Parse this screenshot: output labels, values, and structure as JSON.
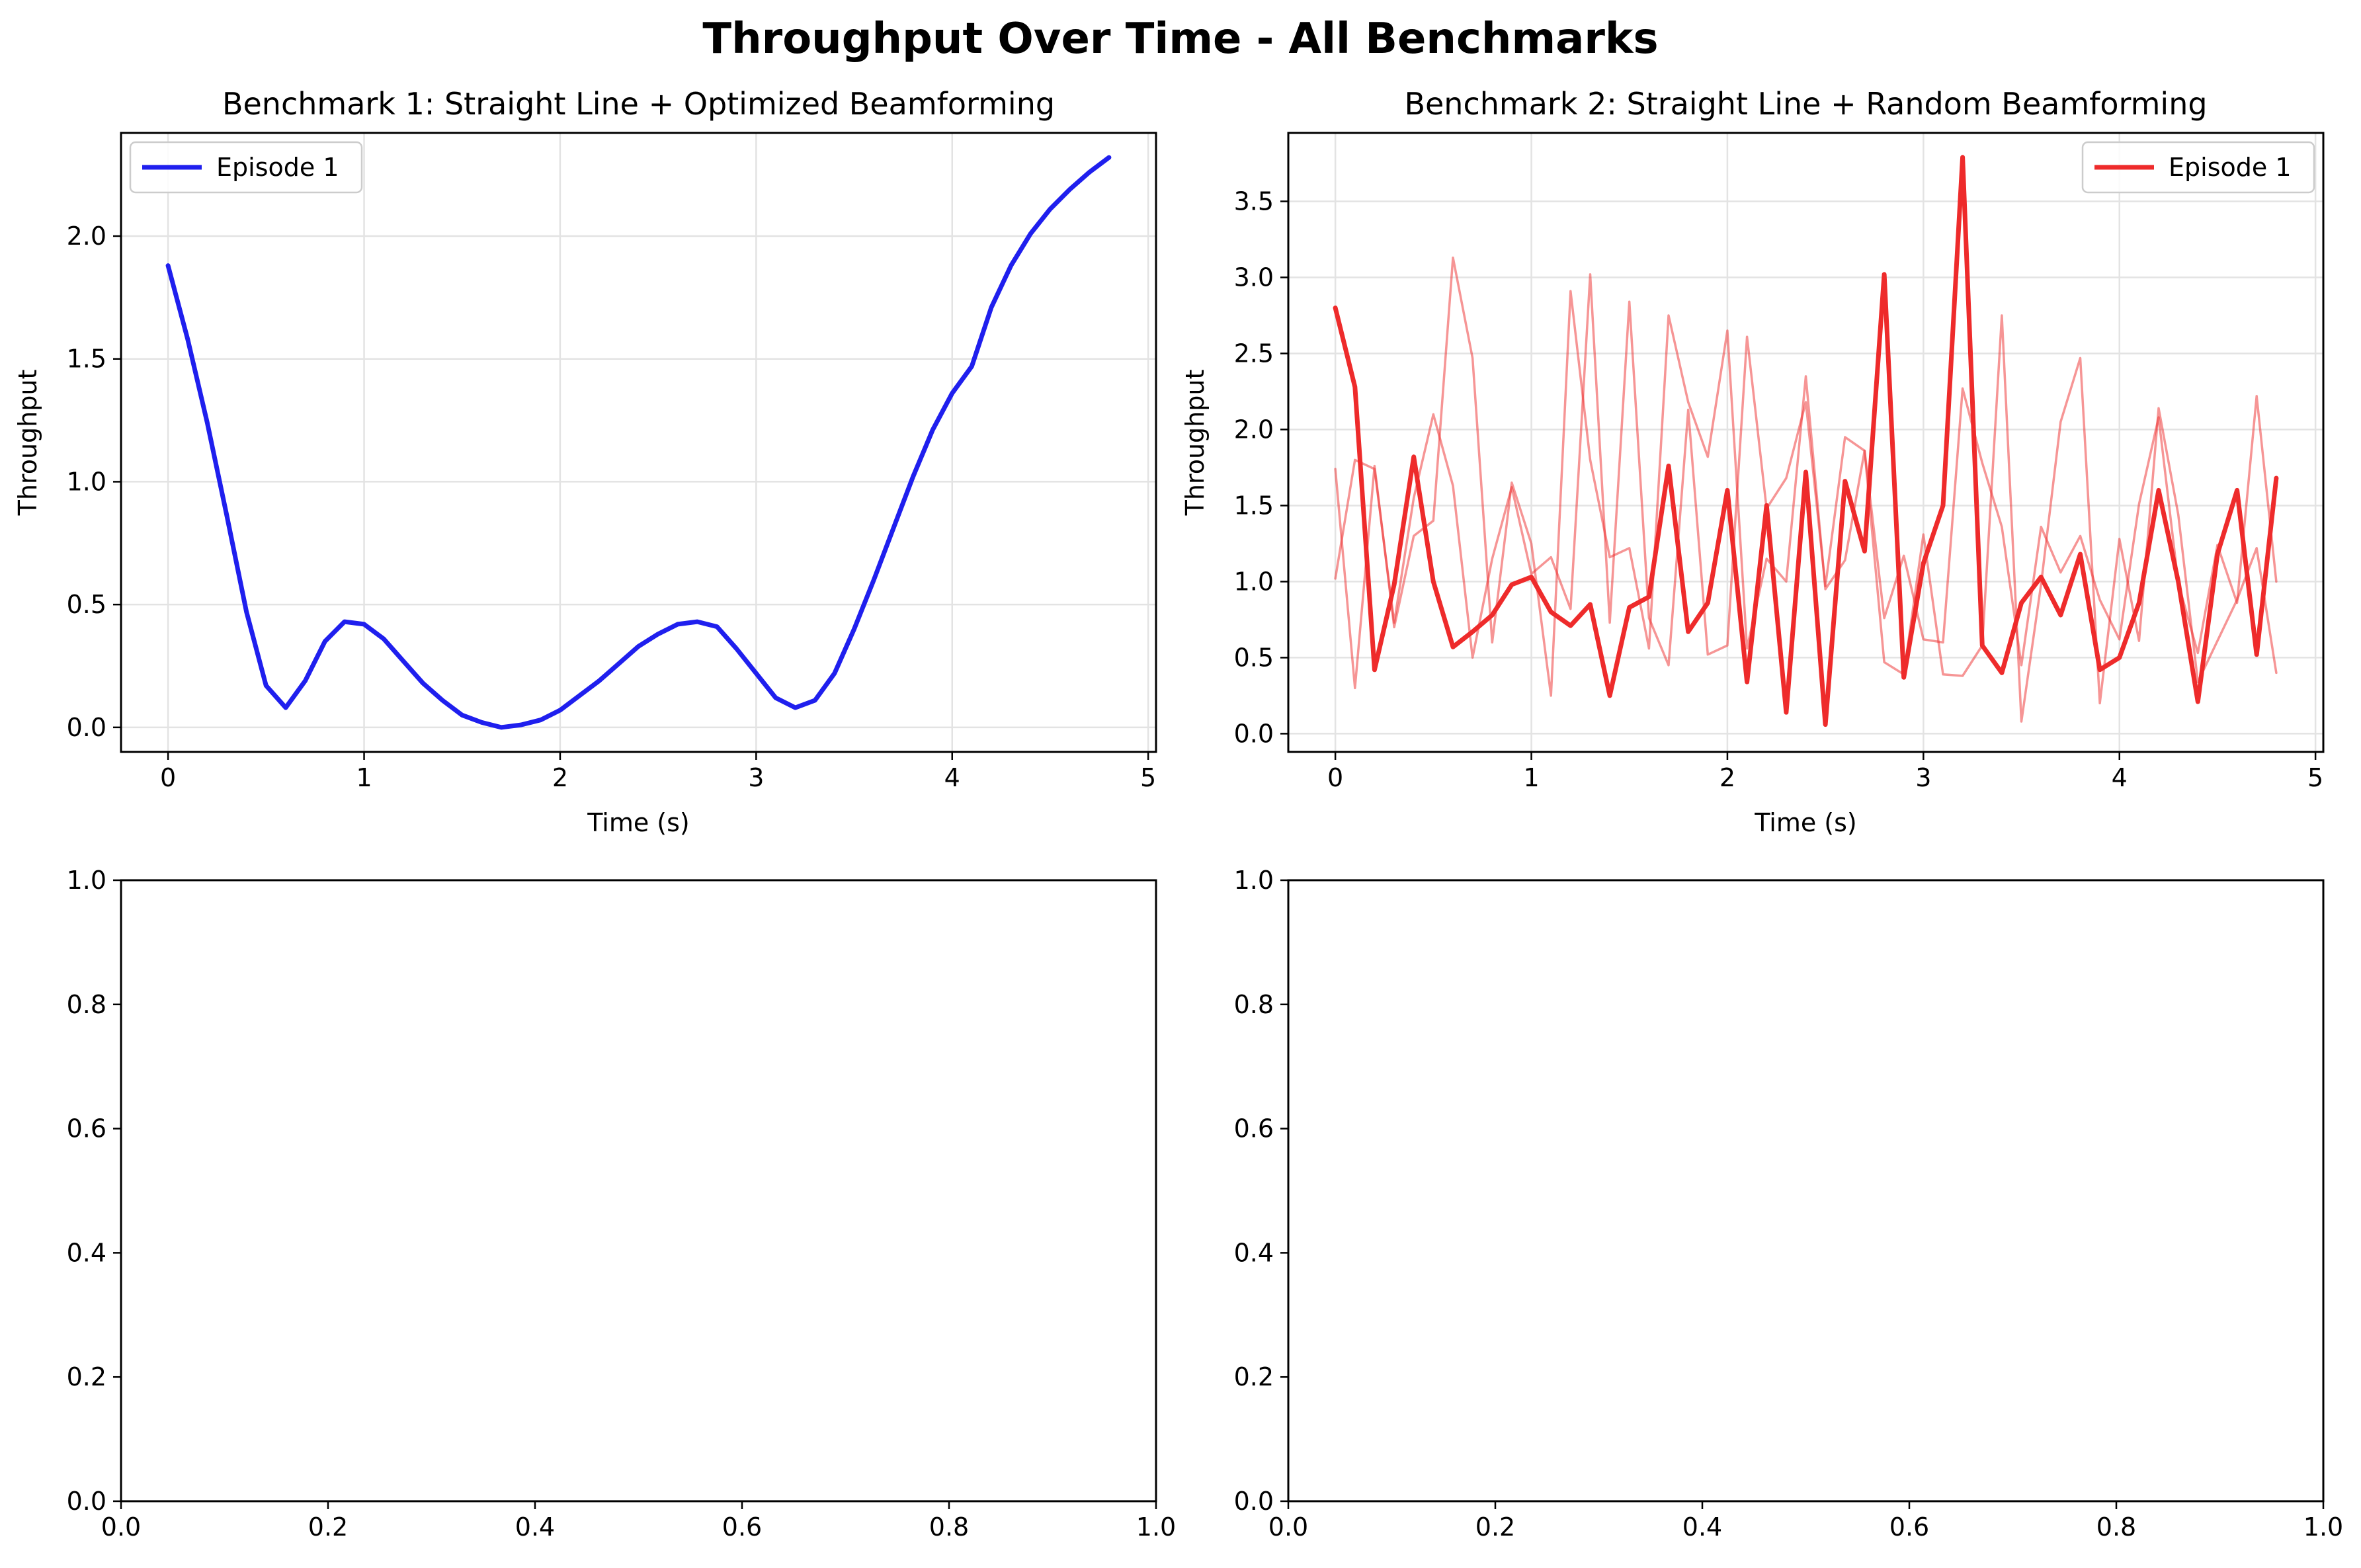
{
  "figure": {
    "suptitle": "Throughput Over Time - All Benchmarks"
  },
  "colors": {
    "blue": "#1f1fee",
    "red": "#ee2b2b",
    "grid": "#e3e3e3"
  },
  "chart_data": [
    {
      "type": "line",
      "title": "Benchmark 1: Straight Line + Optimized Beamforming",
      "xlabel": "Time (s)",
      "ylabel": "Throughput",
      "xlim": [
        -0.24,
        5.04
      ],
      "ylim": [
        -0.1,
        2.42
      ],
      "xticks": [
        0,
        1,
        2,
        3,
        4,
        5
      ],
      "xtick_labels": [
        "0",
        "1",
        "2",
        "3",
        "4",
        "5"
      ],
      "yticks": [
        0.0,
        0.5,
        1.0,
        1.5,
        2.0
      ],
      "ytick_labels": [
        "0.0",
        "0.5",
        "1.0",
        "1.5",
        "2.0"
      ],
      "grid": true,
      "legend_position": "upper left",
      "series": [
        {
          "name": "Episode 1",
          "color": "blue",
          "emphasis": "primary",
          "x": [
            0.0,
            0.1,
            0.2,
            0.3,
            0.4,
            0.5,
            0.6,
            0.7,
            0.8,
            0.9,
            1.0,
            1.1,
            1.2,
            1.3,
            1.4,
            1.5,
            1.6,
            1.7,
            1.8,
            1.9,
            2.0,
            2.1,
            2.2,
            2.3,
            2.4,
            2.5,
            2.6,
            2.7,
            2.8,
            2.9,
            3.0,
            3.1,
            3.2,
            3.3,
            3.4,
            3.5,
            3.6,
            3.7,
            3.8,
            3.9,
            4.0,
            4.1,
            4.2,
            4.3,
            4.4,
            4.5,
            4.6,
            4.7,
            4.8
          ],
          "y": [
            1.88,
            1.58,
            1.24,
            0.86,
            0.47,
            0.17,
            0.08,
            0.19,
            0.35,
            0.43,
            0.42,
            0.36,
            0.27,
            0.18,
            0.11,
            0.05,
            0.02,
            0.0,
            0.01,
            0.03,
            0.07,
            0.13,
            0.19,
            0.26,
            0.33,
            0.38,
            0.42,
            0.43,
            0.41,
            0.32,
            0.22,
            0.12,
            0.08,
            0.11,
            0.22,
            0.4,
            0.6,
            0.81,
            1.02,
            1.21,
            1.36,
            1.47,
            1.71,
            1.88,
            2.01,
            2.11,
            2.19,
            2.26,
            2.32
          ]
        }
      ]
    },
    {
      "type": "line",
      "title": "Benchmark 2: Straight Line + Random Beamforming",
      "xlabel": "Time (s)",
      "ylabel": "Throughput",
      "xlim": [
        -0.24,
        5.04
      ],
      "ylim": [
        -0.12,
        3.95
      ],
      "xticks": [
        0,
        1,
        2,
        3,
        4,
        5
      ],
      "xtick_labels": [
        "0",
        "1",
        "2",
        "3",
        "4",
        "5"
      ],
      "yticks": [
        0.0,
        0.5,
        1.0,
        1.5,
        2.0,
        2.5,
        3.0,
        3.5
      ],
      "ytick_labels": [
        "0.0",
        "0.5",
        "1.0",
        "1.5",
        "2.0",
        "2.5",
        "3.0",
        "3.5"
      ],
      "grid": true,
      "legend_position": "upper right",
      "series": [
        {
          "name": "Episode 1",
          "color": "red",
          "emphasis": "primary",
          "x": [
            0.0,
            0.1,
            0.2,
            0.3,
            0.4,
            0.5,
            0.6,
            0.7,
            0.8,
            0.9,
            1.0,
            1.1,
            1.2,
            1.3,
            1.4,
            1.5,
            1.6,
            1.7,
            1.8,
            1.9,
            2.0,
            2.1,
            2.2,
            2.3,
            2.4,
            2.5,
            2.6,
            2.7,
            2.8,
            2.9,
            3.0,
            3.1,
            3.2,
            3.3,
            3.4,
            3.5,
            3.6,
            3.7,
            3.8,
            3.9,
            4.0,
            4.1,
            4.2,
            4.3,
            4.4,
            4.5,
            4.6,
            4.7,
            4.8
          ],
          "y": [
            2.8,
            2.28,
            0.42,
            0.98,
            1.82,
            1.0,
            0.57,
            0.67,
            0.78,
            0.98,
            1.03,
            0.8,
            0.71,
            0.85,
            0.25,
            0.83,
            0.9,
            1.76,
            0.67,
            0.86,
            1.6,
            0.34,
            1.5,
            0.14,
            1.72,
            0.06,
            1.66,
            1.2,
            3.02,
            0.37,
            1.12,
            1.5,
            3.79,
            0.58,
            0.4,
            0.86,
            1.03,
            0.78,
            1.18,
            0.42,
            0.5,
            0.86,
            1.6,
            1.0,
            0.21,
            1.18,
            1.6,
            0.52,
            1.68
          ]
        },
        {
          "color": "red",
          "emphasis": "faint",
          "x": [
            0.0,
            0.1,
            0.2,
            0.3,
            0.4,
            0.5,
            0.6,
            0.7,
            0.8,
            0.9,
            1.0,
            1.1,
            1.2,
            1.3,
            1.4,
            1.5,
            1.6,
            1.7,
            1.8,
            1.9,
            2.0,
            2.1,
            2.2,
            2.3,
            2.4,
            2.5,
            2.6,
            2.7,
            2.8,
            2.9,
            3.0,
            3.1,
            3.2,
            3.3,
            3.4,
            3.5,
            3.6,
            3.7,
            3.8,
            3.9,
            4.0,
            4.1,
            4.2,
            4.3,
            4.4,
            4.5,
            4.6,
            4.7,
            4.8
          ],
          "y": [
            1.74,
            0.3,
            1.76,
            0.7,
            1.3,
            1.4,
            3.13,
            2.47,
            0.6,
            1.65,
            1.25,
            0.25,
            2.91,
            1.8,
            1.16,
            1.22,
            0.56,
            2.75,
            2.18,
            1.82,
            2.65,
            0.56,
            1.15,
            1.0,
            2.35,
            0.95,
            1.14,
            1.86,
            0.47,
            0.39,
            1.31,
            0.39,
            0.38,
            0.58,
            2.75,
            0.08,
            0.98,
            2.05,
            2.47,
            0.2,
            1.28,
            0.61,
            2.14,
            1.44,
            0.34,
            0.61,
            0.88,
            1.22,
            0.4
          ]
        },
        {
          "color": "red",
          "emphasis": "faint",
          "x": [
            0.0,
            0.1,
            0.2,
            0.3,
            0.4,
            0.5,
            0.6,
            0.7,
            0.8,
            0.9,
            1.0,
            1.1,
            1.2,
            1.3,
            1.4,
            1.5,
            1.6,
            1.7,
            1.8,
            1.9,
            2.0,
            2.1,
            2.2,
            2.3,
            2.4,
            2.5,
            2.6,
            2.7,
            2.8,
            2.9,
            3.0,
            3.1,
            3.2,
            3.3,
            3.4,
            3.5,
            3.6,
            3.7,
            3.8,
            3.9,
            4.0,
            4.1,
            4.2,
            4.3,
            4.4,
            4.5,
            4.6,
            4.7,
            4.8
          ],
          "y": [
            1.02,
            1.8,
            1.74,
            0.73,
            1.55,
            2.1,
            1.63,
            0.5,
            1.15,
            1.62,
            1.05,
            1.16,
            0.82,
            3.02,
            0.73,
            2.84,
            0.76,
            0.45,
            2.13,
            0.52,
            0.58,
            2.61,
            1.48,
            1.68,
            2.18,
            0.97,
            1.95,
            1.86,
            0.76,
            1.17,
            0.62,
            0.6,
            2.27,
            1.78,
            1.36,
            0.45,
            1.36,
            1.06,
            1.3,
            0.88,
            0.62,
            1.51,
            2.08,
            0.99,
            0.53,
            1.24,
            0.86,
            2.22,
            1.0
          ]
        }
      ]
    },
    {
      "type": "line",
      "title": "",
      "xlabel": "",
      "ylabel": "",
      "xlim": [
        0.0,
        1.0
      ],
      "ylim": [
        0.0,
        1.0
      ],
      "xticks": [
        0.0,
        0.2,
        0.4,
        0.6,
        0.8,
        1.0
      ],
      "xtick_labels": [
        "0.0",
        "0.2",
        "0.4",
        "0.6",
        "0.8",
        "1.0"
      ],
      "yticks": [
        0.0,
        0.2,
        0.4,
        0.6,
        0.8,
        1.0
      ],
      "ytick_labels": [
        "0.0",
        "0.2",
        "0.4",
        "0.6",
        "0.8",
        "1.0"
      ],
      "grid": false,
      "series": []
    },
    {
      "type": "line",
      "title": "",
      "xlabel": "",
      "ylabel": "",
      "xlim": [
        0.0,
        1.0
      ],
      "ylim": [
        0.0,
        1.0
      ],
      "xticks": [
        0.0,
        0.2,
        0.4,
        0.6,
        0.8,
        1.0
      ],
      "xtick_labels": [
        "0.0",
        "0.2",
        "0.4",
        "0.6",
        "0.8",
        "1.0"
      ],
      "yticks": [
        0.0,
        0.2,
        0.4,
        0.6,
        0.8,
        1.0
      ],
      "ytick_labels": [
        "0.0",
        "0.2",
        "0.4",
        "0.6",
        "0.8",
        "1.0"
      ],
      "grid": false,
      "series": []
    }
  ]
}
